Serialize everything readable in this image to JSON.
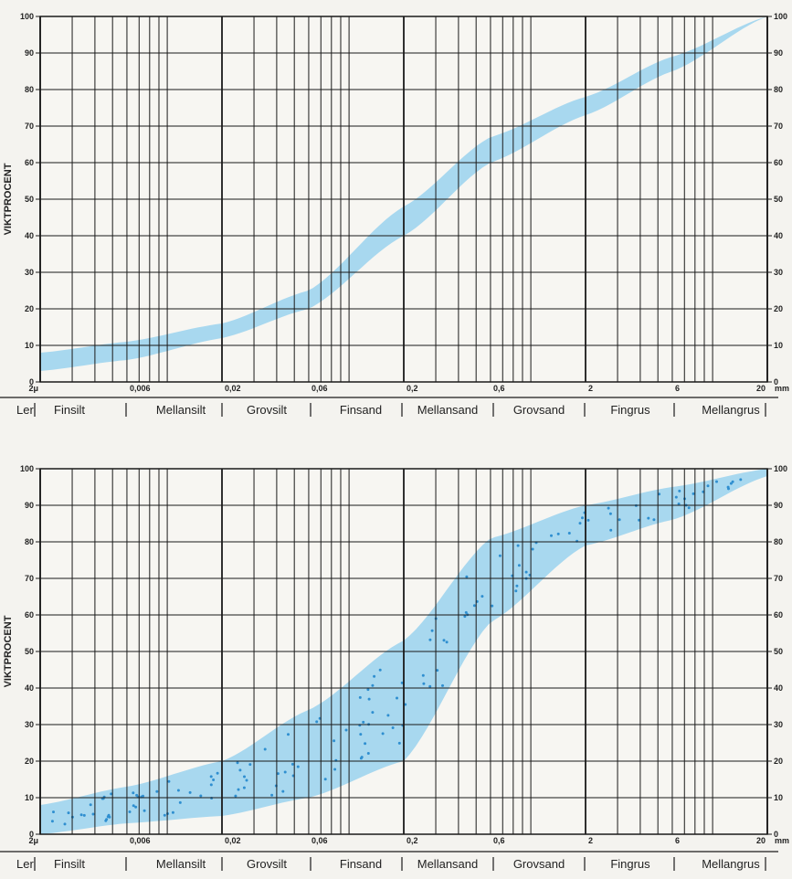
{
  "chart_data": [
    {
      "type": "area",
      "ylabel": "VIKTPROCENT",
      "x_unit": "mm",
      "xscale": "log",
      "xlim": [
        0.002,
        20
      ],
      "ylim": [
        0,
        100
      ],
      "y_ticks": [
        0,
        10,
        20,
        30,
        40,
        50,
        60,
        70,
        80,
        90,
        100
      ],
      "x_tick_labels": [
        "2μ",
        "0,006",
        "0,02",
        "0,06",
        "0,2",
        "0,6",
        "2",
        "6",
        "20"
      ],
      "fractions": [
        "Ler",
        "Finsilt",
        "Mellansilt",
        "Grovsilt",
        "Finsand",
        "Mellansand",
        "Grovsand",
        "Fingrus",
        "Mellangrus"
      ],
      "band_color": "#a8d8ef",
      "dotted": false,
      "band": {
        "x": [
          0.002,
          0.006,
          0.02,
          0.06,
          0.2,
          0.6,
          2,
          6,
          20
        ],
        "lower": [
          3,
          6,
          12,
          20,
          40,
          60,
          73,
          85,
          100
        ],
        "upper": [
          8,
          11,
          16,
          25,
          48,
          67,
          78,
          89,
          100
        ]
      }
    },
    {
      "type": "area",
      "ylabel": "VIKTPROCENT",
      "x_unit": "mm",
      "xscale": "log",
      "xlim": [
        0.002,
        20
      ],
      "ylim": [
        0,
        100
      ],
      "y_ticks": [
        0,
        10,
        20,
        30,
        40,
        50,
        60,
        70,
        80,
        90,
        100
      ],
      "x_tick_labels": [
        "2μ",
        "0,006",
        "0,02",
        "0,06",
        "0,2",
        "0,6",
        "2",
        "6",
        "20"
      ],
      "fractions": [
        "Ler",
        "Finsilt",
        "Mellansilt",
        "Grovsilt",
        "Finsand",
        "Mellansand",
        "Grovsand",
        "Fingrus",
        "Mellangrus"
      ],
      "band_color": "#a8d8ef",
      "dotted": true,
      "dot_color": "#2f8fd0",
      "band": {
        "x": [
          0.002,
          0.006,
          0.02,
          0.06,
          0.2,
          0.6,
          2,
          6,
          20
        ],
        "lower": [
          0,
          3,
          5,
          10,
          20,
          58,
          79,
          86,
          98
        ],
        "upper": [
          8,
          13,
          20,
          34,
          53,
          81,
          90,
          95,
          100
        ]
      }
    }
  ]
}
